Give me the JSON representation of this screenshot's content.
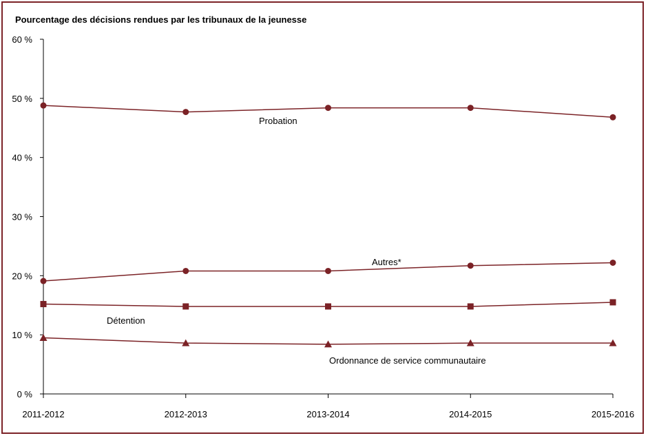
{
  "chart_data": {
    "type": "line",
    "title": "Pourcentage des décisions rendues par les tribunaux de la jeunesse",
    "xlabel": "",
    "ylabel": "",
    "categories": [
      "2011-2012",
      "2012-2013",
      "2013-2014",
      "2014-2015",
      "2015-2016"
    ],
    "yticks": [
      "0 %",
      "10 %",
      "20 %",
      "30 %",
      "40 %",
      "50 %",
      "60 %"
    ],
    "ylim": [
      0,
      60
    ],
    "grid": false,
    "colors": {
      "line": "#7b2226",
      "frame": "#7b2226",
      "axis": "#000000"
    },
    "series": [
      {
        "name": "Probation",
        "marker": "circle",
        "values": [
          48.8,
          47.7,
          48.4,
          48.4,
          46.8
        ]
      },
      {
        "name": "Autres*",
        "marker": "circle",
        "values": [
          19.1,
          20.8,
          20.8,
          21.7,
          22.2
        ]
      },
      {
        "name": "Détention",
        "marker": "square",
        "values": [
          15.2,
          14.8,
          14.8,
          14.8,
          15.5
        ]
      },
      {
        "name": "Ordonnance de service communautaire",
        "marker": "triangle",
        "values": [
          9.5,
          8.6,
          8.4,
          8.6,
          8.6
        ]
      }
    ]
  }
}
